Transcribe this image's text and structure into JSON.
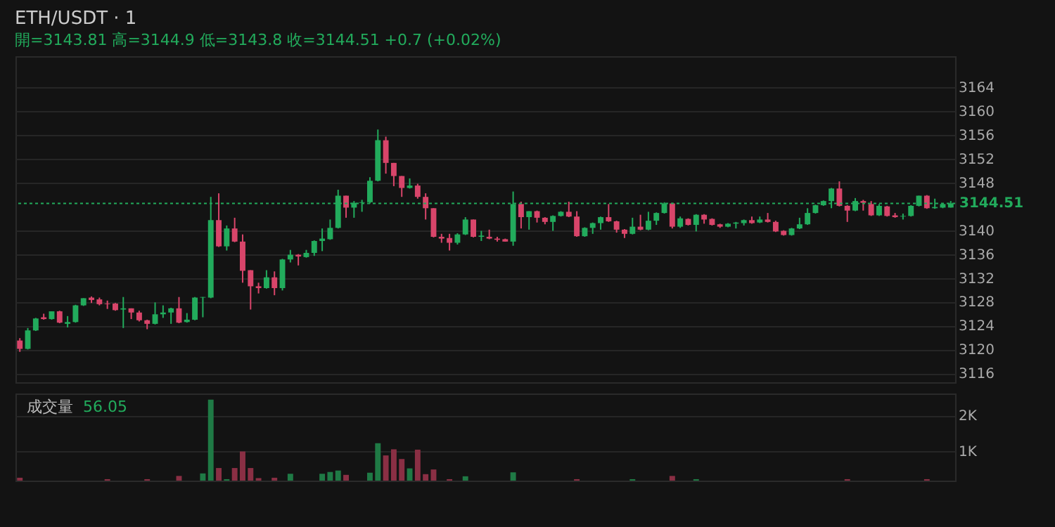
{
  "chart_data": [
    {
      "type": "candlestick",
      "title": "ETH/USDT · 1",
      "subtitle": "開=3143.81 高=3144.9 低=3143.8 收=3144.51 +0.7 (+0.02%)",
      "categories": [
        null,
        null,
        null,
        null,
        null,
        null,
        null,
        null,
        null,
        null,
        null,
        null,
        null,
        null,
        null,
        null,
        null,
        null,
        null,
        null,
        null,
        null,
        null,
        null,
        null,
        null,
        null,
        null,
        null,
        null,
        null,
        null,
        null,
        null,
        null,
        null,
        null,
        null,
        null,
        null,
        null,
        null,
        null,
        null,
        null,
        null,
        null,
        null,
        null,
        null,
        null,
        null,
        null,
        null,
        null,
        null,
        null,
        null,
        null,
        null,
        null,
        null,
        null,
        null,
        null,
        null,
        null,
        null,
        null,
        null,
        null,
        null,
        null,
        null,
        null,
        null,
        null,
        null,
        null,
        null,
        null,
        null,
        null,
        null,
        null,
        null,
        null,
        null,
        null,
        null,
        null,
        null,
        null,
        null,
        null,
        null,
        null,
        null,
        null,
        null,
        null,
        null,
        null,
        null,
        null,
        null,
        null,
        null,
        null,
        null,
        null,
        null,
        null,
        null,
        null,
        null,
        null,
        null
      ],
      "ohlc": [
        [
          3121.5,
          3121.9,
          3119.6,
          3120.1
        ],
        [
          3120.1,
          3123.6,
          3120.0,
          3123.2
        ],
        [
          3123.2,
          3125.3,
          3123.1,
          3125.2
        ],
        [
          3125.4,
          3126.0,
          3125.0,
          3125.1
        ],
        [
          3125.1,
          3126.4,
          3125.0,
          3126.4
        ],
        [
          3126.4,
          3126.5,
          3124.4,
          3124.5
        ],
        [
          3124.3,
          3125.6,
          3123.7,
          3124.6
        ],
        [
          3124.6,
          3127.5,
          3124.5,
          3127.4
        ],
        [
          3127.4,
          3128.6,
          3127.3,
          3128.6
        ],
        [
          3128.7,
          3128.9,
          3127.8,
          3128.3
        ],
        [
          3128.4,
          3128.7,
          3127.4,
          3127.6
        ],
        [
          3127.7,
          3128.2,
          3126.8,
          3127.6
        ],
        [
          3127.7,
          3127.8,
          3126.5,
          3126.6
        ],
        [
          3126.7,
          3128.8,
          3123.6,
          3126.9
        ],
        [
          3126.9,
          3126.9,
          3125.1,
          3126.2
        ],
        [
          3126.2,
          3126.5,
          3124.7,
          3124.9
        ],
        [
          3124.9,
          3125.0,
          3123.4,
          3124.3
        ],
        [
          3124.3,
          3127.9,
          3124.2,
          3125.9
        ],
        [
          3125.9,
          3127.4,
          3125.3,
          3126.2
        ],
        [
          3126.2,
          3127.0,
          3124.3,
          3126.9
        ],
        [
          3126.9,
          3128.8,
          3124.4,
          3124.5
        ],
        [
          3124.6,
          3126.1,
          3124.5,
          3125.0
        ],
        [
          3125.0,
          3128.8,
          3124.9,
          3128.7
        ],
        [
          3128.7,
          3128.8,
          3125.4,
          3128.8
        ],
        [
          3128.7,
          3145.6,
          3128.6,
          3141.7
        ],
        [
          3141.7,
          3146.2,
          3137.2,
          3137.3
        ],
        [
          3137.3,
          3140.8,
          3136.6,
          3140.3
        ],
        [
          3140.3,
          3142.1,
          3138.0,
          3138.1
        ],
        [
          3138.1,
          3139.3,
          3131.2,
          3133.2
        ],
        [
          3133.3,
          3133.3,
          3126.7,
          3130.6
        ],
        [
          3130.6,
          3131.2,
          3129.4,
          3130.3
        ],
        [
          3130.3,
          3133.3,
          3130.2,
          3132.1
        ],
        [
          3132.1,
          3133.1,
          3129.1,
          3130.3
        ],
        [
          3130.3,
          3135.2,
          3129.9,
          3135.1
        ],
        [
          3135.1,
          3136.7,
          3134.6,
          3135.9
        ],
        [
          3135.9,
          3136.0,
          3134.1,
          3135.6
        ],
        [
          3135.5,
          3136.7,
          3135.4,
          3136.2
        ],
        [
          3136.2,
          3138.3,
          3135.7,
          3138.2
        ],
        [
          3138.2,
          3140.3,
          3136.5,
          3138.6
        ],
        [
          3138.5,
          3141.8,
          3138.4,
          3140.4
        ],
        [
          3140.4,
          3146.8,
          3140.3,
          3145.8
        ],
        [
          3145.8,
          3145.8,
          3142.1,
          3143.8
        ],
        [
          3143.8,
          3144.9,
          3142.1,
          3144.6
        ],
        [
          3144.6,
          3145.1,
          3143.1,
          3144.7
        ],
        [
          3144.7,
          3148.9,
          3144.5,
          3148.3
        ],
        [
          3148.3,
          3156.9,
          3148.2,
          3155.1
        ],
        [
          3155.1,
          3155.7,
          3149.5,
          3151.3
        ],
        [
          3151.3,
          3151.3,
          3147.4,
          3149.1
        ],
        [
          3149.1,
          3149.1,
          3145.6,
          3147.1
        ],
        [
          3147.1,
          3148.7,
          3147.0,
          3147.5
        ],
        [
          3147.5,
          3147.8,
          3145.3,
          3145.6
        ],
        [
          3145.6,
          3146.2,
          3141.8,
          3143.7
        ],
        [
          3143.7,
          3143.7,
          3138.8,
          3138.9
        ],
        [
          3138.9,
          3139.4,
          3137.9,
          3138.6
        ],
        [
          3138.7,
          3139.4,
          3136.6,
          3137.9
        ],
        [
          3137.9,
          3139.5,
          3137.6,
          3139.3
        ],
        [
          3139.3,
          3142.2,
          3139.2,
          3141.8
        ],
        [
          3141.8,
          3141.8,
          3138.8,
          3138.9
        ],
        [
          3138.9,
          3139.9,
          3138.2,
          3139.1
        ],
        [
          3138.9,
          3140.1,
          3138.5,
          3138.6
        ],
        [
          3138.6,
          3138.9,
          3138.1,
          3138.4
        ],
        [
          3138.5,
          3138.6,
          3138.1,
          3138.1
        ],
        [
          3138.1,
          3146.5,
          3137.4,
          3144.4
        ],
        [
          3144.4,
          3144.8,
          3140.3,
          3142.2
        ],
        [
          3142.2,
          3143.2,
          3140.1,
          3143.2
        ],
        [
          3143.2,
          3143.3,
          3141.3,
          3142.1
        ],
        [
          3142.1,
          3142.2,
          3141.0,
          3141.4
        ],
        [
          3141.4,
          3142.5,
          3139.9,
          3142.4
        ],
        [
          3142.4,
          3143.2,
          3142.3,
          3143.1
        ],
        [
          3143.1,
          3144.8,
          3142.2,
          3142.3
        ],
        [
          3142.3,
          3143.2,
          3138.9,
          3139.0
        ],
        [
          3139.0,
          3140.5,
          3138.9,
          3140.4
        ],
        [
          3140.4,
          3141.3,
          3139.4,
          3141.2
        ],
        [
          3141.2,
          3142.3,
          3140.1,
          3142.2
        ],
        [
          3142.2,
          3144.4,
          3141.4,
          3141.5
        ],
        [
          3141.5,
          3141.6,
          3139.6,
          3140.1
        ],
        [
          3140.1,
          3140.2,
          3138.7,
          3139.4
        ],
        [
          3139.4,
          3142.1,
          3139.3,
          3140.6
        ],
        [
          3140.6,
          3142.6,
          3140.0,
          3140.1
        ],
        [
          3140.1,
          3143.1,
          3140.0,
          3141.6
        ],
        [
          3141.6,
          3143.0,
          3140.9,
          3142.9
        ],
        [
          3142.9,
          3144.7,
          3142.8,
          3144.5
        ],
        [
          3144.5,
          3144.6,
          3140.3,
          3140.6
        ],
        [
          3140.6,
          3142.3,
          3140.4,
          3142.0
        ],
        [
          3141.9,
          3142.0,
          3140.8,
          3140.9
        ],
        [
          3140.9,
          3142.7,
          3139.8,
          3142.6
        ],
        [
          3142.6,
          3142.7,
          3141.1,
          3141.8
        ],
        [
          3141.9,
          3142.0,
          3140.8,
          3140.9
        ],
        [
          3141.0,
          3141.1,
          3140.4,
          3140.6
        ],
        [
          3140.6,
          3141.2,
          3140.5,
          3141.1
        ],
        [
          3141.1,
          3141.4,
          3140.3,
          3141.3
        ],
        [
          3141.2,
          3141.8,
          3140.8,
          3141.7
        ],
        [
          3141.7,
          3142.3,
          3141.1,
          3141.2
        ],
        [
          3141.3,
          3142.3,
          3141.2,
          3141.8
        ],
        [
          3141.8,
          3142.9,
          3141.3,
          3141.4
        ],
        [
          3141.4,
          3141.6,
          3139.7,
          3139.8
        ],
        [
          3139.9,
          3140.0,
          3139.1,
          3139.2
        ],
        [
          3139.2,
          3140.4,
          3139.1,
          3140.3
        ],
        [
          3140.3,
          3142.1,
          3140.2,
          3141.0
        ],
        [
          3141.0,
          3143.7,
          3140.9,
          3142.9
        ],
        [
          3142.9,
          3144.3,
          3142.8,
          3144.2
        ],
        [
          3144.2,
          3145.0,
          3144.1,
          3144.9
        ],
        [
          3144.9,
          3147.1,
          3143.7,
          3147.0
        ],
        [
          3147.0,
          3148.2,
          3144.0,
          3144.1
        ],
        [
          3144.1,
          3144.2,
          3141.4,
          3143.3
        ],
        [
          3143.3,
          3145.4,
          3143.2,
          3144.9
        ],
        [
          3144.9,
          3145.1,
          3143.3,
          3144.6
        ],
        [
          3144.4,
          3144.9,
          3142.4,
          3142.5
        ],
        [
          3142.5,
          3144.4,
          3142.4,
          3144.1
        ],
        [
          3144.0,
          3144.1,
          3142.3,
          3142.4
        ],
        [
          3142.5,
          3142.9,
          3142.1,
          3142.2
        ],
        [
          3142.3,
          3142.8,
          3141.8,
          3142.4
        ],
        [
          3142.4,
          3144.2,
          3142.3,
          3144.1
        ],
        [
          3144.1,
          3145.8,
          3144.0,
          3145.8
        ],
        [
          3145.8,
          3145.9,
          3143.6,
          3143.7
        ],
        [
          3143.7,
          3145.3,
          3143.6,
          3143.9
        ],
        [
          3143.8,
          3144.5,
          3143.7,
          3144.4
        ],
        [
          3143.81,
          3144.9,
          3143.8,
          3144.51
        ]
      ],
      "colors": [
        "#d8456a",
        "#22ab5c",
        "#22ab5c",
        "#d8456a",
        "#22ab5c",
        "#d8456a",
        "#22ab5c",
        "#22ab5c",
        "#22ab5c",
        "#d8456a",
        "#d8456a",
        "#d8456a",
        "#d8456a",
        "#22ab5c",
        "#d8456a",
        "#d8456a",
        "#d8456a",
        "#22ab5c",
        "#22ab5c",
        "#22ab5c",
        "#d8456a",
        "#22ab5c",
        "#22ab5c",
        "#22ab5c",
        "#22ab5c",
        "#d8456a",
        "#22ab5c",
        "#d8456a",
        "#d8456a",
        "#d8456a",
        "#d8456a",
        "#22ab5c",
        "#d8456a",
        "#22ab5c",
        "#22ab5c",
        "#d8456a",
        "#22ab5c",
        "#22ab5c",
        "#22ab5c",
        "#22ab5c",
        "#22ab5c",
        "#d8456a",
        "#22ab5c",
        "#22ab5c",
        "#22ab5c",
        "#22ab5c",
        "#d8456a",
        "#d8456a",
        "#d8456a",
        "#22ab5c",
        "#d8456a",
        "#d8456a",
        "#d8456a",
        "#d8456a",
        "#d8456a",
        "#22ab5c",
        "#22ab5c",
        "#d8456a",
        "#22ab5c",
        "#d8456a",
        "#d8456a",
        "#d8456a",
        "#22ab5c",
        "#d8456a",
        "#22ab5c",
        "#d8456a",
        "#d8456a",
        "#22ab5c",
        "#22ab5c",
        "#d8456a",
        "#d8456a",
        "#22ab5c",
        "#22ab5c",
        "#22ab5c",
        "#d8456a",
        "#d8456a",
        "#d8456a",
        "#22ab5c",
        "#d8456a",
        "#22ab5c",
        "#22ab5c",
        "#22ab5c",
        "#d8456a",
        "#22ab5c",
        "#d8456a",
        "#22ab5c",
        "#d8456a",
        "#d8456a",
        "#d8456a",
        "#22ab5c",
        "#22ab5c",
        "#22ab5c",
        "#d8456a",
        "#22ab5c",
        "#d8456a",
        "#d8456a",
        "#d8456a",
        "#22ab5c",
        "#22ab5c",
        "#22ab5c",
        "#22ab5c",
        "#22ab5c",
        "#22ab5c",
        "#d8456a",
        "#d8456a",
        "#22ab5c",
        "#d8456a",
        "#d8456a",
        "#22ab5c",
        "#d8456a",
        "#d8456a",
        "#22ab5c",
        "#22ab5c",
        "#22ab5c",
        "#d8456a",
        "#22ab5c",
        "#22ab5c",
        "#22ab5c"
      ],
      "ylim": [
        3114.5,
        3169.2
      ],
      "yticks": [
        3116,
        3120,
        3124,
        3128,
        3132,
        3136,
        3140,
        3148,
        3152,
        3156,
        3160,
        3164
      ],
      "grid": "y",
      "tick_labels": "y",
      "ref_lines": [
        {
          "axis": "y",
          "value": 3144.51,
          "label": "3144.51",
          "color": "#22ab5c",
          "line_style": "dotted"
        }
      ]
    },
    {
      "type": "bar",
      "title": "成交量",
      "annotations": [
        "56.05"
      ],
      "categories": [
        null,
        null,
        null,
        null,
        null,
        null,
        null,
        null,
        null,
        null,
        null,
        null,
        null,
        null,
        null,
        null,
        null,
        null,
        null,
        null,
        null,
        null,
        null,
        null,
        null,
        null,
        null,
        null,
        null,
        null,
        null,
        null,
        null,
        null,
        null,
        null,
        null,
        null,
        null,
        null,
        null,
        null,
        null,
        null,
        null,
        null,
        null,
        null,
        null,
        null,
        null,
        null,
        null,
        null,
        null,
        null,
        null,
        null,
        null,
        null,
        null,
        null,
        null,
        null,
        null,
        null,
        null,
        null,
        null,
        null,
        null,
        null,
        null,
        null,
        null,
        null,
        null,
        null,
        null,
        null,
        null,
        null,
        null,
        null,
        null,
        null,
        null,
        null,
        null,
        null,
        null,
        null,
        null,
        null,
        null,
        null,
        null,
        null,
        null,
        null,
        null,
        null,
        null,
        null,
        null,
        null,
        null,
        null,
        null,
        null,
        null,
        null,
        null,
        null,
        null,
        null,
        null,
        null
      ],
      "values": [
        270,
        null,
        null,
        null,
        null,
        null,
        null,
        null,
        null,
        null,
        null,
        230,
        null,
        null,
        null,
        null,
        230,
        null,
        null,
        null,
        320,
        null,
        null,
        390,
        2440,
        540,
        230,
        540,
        1000,
        540,
        260,
        null,
        270,
        null,
        380,
        null,
        null,
        null,
        380,
        430,
        470,
        350,
        null,
        null,
        410,
        1230,
        890,
        1060,
        790,
        530,
        1050,
        370,
        500,
        null,
        230,
        null,
        310,
        null,
        null,
        null,
        null,
        null,
        420,
        null,
        null,
        null,
        null,
        null,
        null,
        null,
        230,
        null,
        null,
        null,
        null,
        null,
        null,
        230,
        null,
        null,
        null,
        null,
        320,
        null,
        null,
        230,
        null,
        null,
        null,
        null,
        null,
        null,
        null,
        null,
        null,
        null,
        null,
        null,
        null,
        null,
        null,
        null,
        null,
        null,
        230,
        null,
        null,
        null,
        null,
        null,
        null,
        null,
        null,
        null,
        230,
        null,
        null,
        null
      ],
      "colors": [
        "#8a2f44",
        "#1f7a45",
        "#1f7a45",
        "#8a2f44",
        "#1f7a45",
        "#8a2f44",
        "#1f7a45",
        "#1f7a45",
        "#1f7a45",
        "#8a2f44",
        "#8a2f44",
        "#8a2f44",
        "#8a2f44",
        "#1f7a45",
        "#8a2f44",
        "#8a2f44",
        "#8a2f44",
        "#1f7a45",
        "#1f7a45",
        "#1f7a45",
        "#8a2f44",
        "#1f7a45",
        "#1f7a45",
        "#1f7a45",
        "#1f7a45",
        "#8a2f44",
        "#1f7a45",
        "#8a2f44",
        "#8a2f44",
        "#8a2f44",
        "#8a2f44",
        "#1f7a45",
        "#8a2f44",
        "#1f7a45",
        "#1f7a45",
        "#8a2f44",
        "#1f7a45",
        "#1f7a45",
        "#1f7a45",
        "#1f7a45",
        "#1f7a45",
        "#8a2f44",
        "#1f7a45",
        "#1f7a45",
        "#1f7a45",
        "#1f7a45",
        "#8a2f44",
        "#8a2f44",
        "#8a2f44",
        "#1f7a45",
        "#8a2f44",
        "#8a2f44",
        "#8a2f44",
        "#8a2f44",
        "#8a2f44",
        "#1f7a45",
        "#1f7a45",
        "#8a2f44",
        "#1f7a45",
        "#8a2f44",
        "#8a2f44",
        "#8a2f44",
        "#1f7a45",
        "#8a2f44",
        "#1f7a45",
        "#8a2f44",
        "#8a2f44",
        "#1f7a45",
        "#1f7a45",
        "#8a2f44",
        "#8a2f44",
        "#1f7a45",
        "#1f7a45",
        "#1f7a45",
        "#8a2f44",
        "#8a2f44",
        "#8a2f44",
        "#1f7a45",
        "#8a2f44",
        "#1f7a45",
        "#1f7a45",
        "#1f7a45",
        "#8a2f44",
        "#1f7a45",
        "#8a2f44",
        "#1f7a45",
        "#8a2f44",
        "#8a2f44",
        "#8a2f44",
        "#1f7a45",
        "#1f7a45",
        "#1f7a45",
        "#8a2f44",
        "#1f7a45",
        "#8a2f44",
        "#8a2f44",
        "#8a2f44",
        "#1f7a45",
        "#1f7a45",
        "#1f7a45",
        "#1f7a45",
        "#1f7a45",
        "#1f7a45",
        "#8a2f44",
        "#8a2f44",
        "#1f7a45",
        "#8a2f44",
        "#8a2f44",
        "#1f7a45",
        "#8a2f44",
        "#8a2f44",
        "#1f7a45",
        "#1f7a45",
        "#1f7a45",
        "#8a2f44",
        "#1f7a45",
        "#1f7a45",
        "#1f7a45"
      ],
      "ylim": [
        190,
        2610
      ],
      "yticks": [
        {
          "value": 1000,
          "label": "1K"
        },
        {
          "value": 2000,
          "label": "2K"
        }
      ],
      "grid": "y",
      "tick_labels": "y"
    }
  ]
}
